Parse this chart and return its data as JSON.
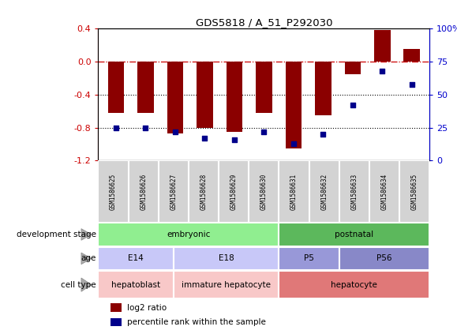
{
  "title": "GDS5818 / A_51_P292030",
  "samples": [
    "GSM1586625",
    "GSM1586626",
    "GSM1586627",
    "GSM1586628",
    "GSM1586629",
    "GSM1586630",
    "GSM1586631",
    "GSM1586632",
    "GSM1586633",
    "GSM1586634",
    "GSM1586635"
  ],
  "log2_ratio": [
    -0.62,
    -0.62,
    -0.87,
    -0.8,
    -0.85,
    -0.62,
    -1.05,
    -0.65,
    -0.15,
    0.38,
    0.15
  ],
  "percentile": [
    25,
    25,
    22,
    17,
    16,
    22,
    13,
    20,
    42,
    68,
    58
  ],
  "bar_color": "#8B0000",
  "dot_color": "#00008B",
  "ylim_left": [
    -1.2,
    0.4
  ],
  "ylim_right": [
    0,
    100
  ],
  "yticks_left": [
    -1.2,
    -0.8,
    -0.4,
    0.0,
    0.4
  ],
  "yticks_right": [
    0,
    25,
    50,
    75,
    100
  ],
  "ytick_labels_right": [
    "0",
    "25",
    "50",
    "75",
    "100%"
  ],
  "hline_y": 0.0,
  "dotted_lines": [
    -0.4,
    -0.8
  ],
  "development_stage": {
    "labels": [
      "embryonic",
      "postnatal"
    ],
    "ranges": [
      [
        0,
        6
      ],
      [
        6,
        11
      ]
    ],
    "colors": [
      "#90EE90",
      "#5CB85C"
    ]
  },
  "age": {
    "labels": [
      "E14",
      "E18",
      "P5",
      "P56"
    ],
    "ranges": [
      [
        0,
        2.5
      ],
      [
        2.5,
        6
      ],
      [
        6,
        8
      ],
      [
        8,
        11
      ]
    ],
    "colors": [
      "#C8C8F8",
      "#C8C8F8",
      "#9898D8",
      "#8888C8"
    ]
  },
  "cell_type": {
    "labels": [
      "hepatoblast",
      "immature hepatocyte",
      "hepatocyte"
    ],
    "ranges": [
      [
        0,
        2.5
      ],
      [
        2.5,
        6
      ],
      [
        6,
        11
      ]
    ],
    "colors": [
      "#F8C8C8",
      "#F8C8C8",
      "#E07878"
    ]
  },
  "cell_type_lighter": [
    true,
    true,
    false
  ],
  "row_labels": [
    "development stage",
    "age",
    "cell type"
  ],
  "legend_items": [
    {
      "label": "log2 ratio",
      "color": "#8B0000"
    },
    {
      "label": "percentile rank within the sample",
      "color": "#00008B"
    }
  ]
}
